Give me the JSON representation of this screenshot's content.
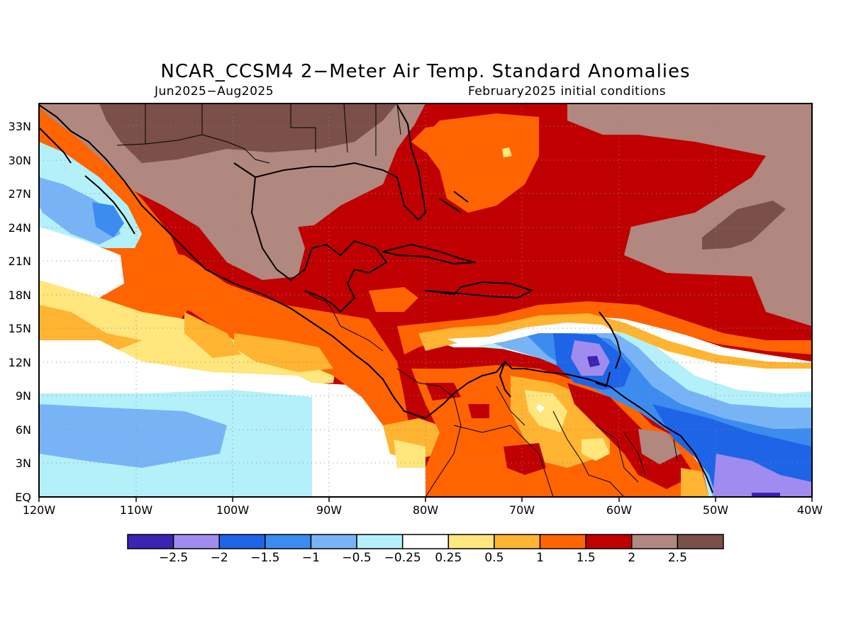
{
  "title": "NCAR_CCSM4 2−Meter Air Temp. Standard Anomalies",
  "subtitle_left": "Jun2025−Aug2025",
  "subtitle_right": "February2025 initial conditions",
  "lat_labels": [
    "33N",
    "30N",
    "27N",
    "24N",
    "21N",
    "18N",
    "15N",
    "12N",
    "9N",
    "6N",
    "3N",
    "EQ"
  ],
  "lon_labels": [
    "120W",
    "110W",
    "100W",
    "90W",
    "80W",
    "70W",
    "60W",
    "50W",
    "40W"
  ],
  "colorbar": {
    "colors": [
      "#3c23b4",
      "#a08cf0",
      "#1e64e6",
      "#3c8cf0",
      "#78b4f5",
      "#b4f0fa",
      "#ffffff",
      "#ffe67d",
      "#ffb432",
      "#ff6400",
      "#c00000",
      "#b08880",
      "#7a5048"
    ],
    "labels": [
      "−2.5",
      "−2",
      "−1.5",
      "−1",
      "−0.5",
      "−0.25",
      "0.25",
      "0.5",
      "1",
      "1.5",
      "2",
      "2.5"
    ]
  },
  "map_extent": {
    "lon_min": -120,
    "lon_max": -40,
    "lat_min": 0,
    "lat_max": 35
  }
}
